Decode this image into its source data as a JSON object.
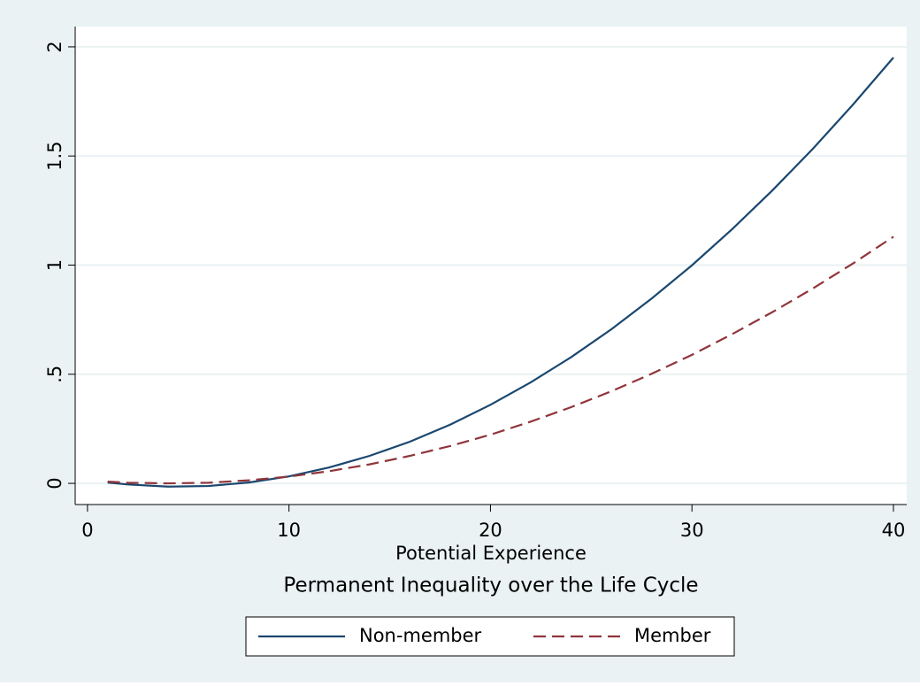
{
  "chart_data": {
    "type": "line",
    "title": "Permanent Inequality over the Life Cycle",
    "x_label": "Potential Experience",
    "x": [
      1,
      2,
      4,
      6,
      8,
      10,
      12,
      14,
      16,
      18,
      20,
      22,
      24,
      26,
      28,
      30,
      32,
      34,
      36,
      38,
      40
    ],
    "series": [
      {
        "name": "Non-member",
        "color": "#1a476f",
        "line_style": "solid",
        "values": [
          0.004,
          -0.005,
          -0.015,
          -0.012,
          0.004,
          0.032,
          0.073,
          0.126,
          0.191,
          0.269,
          0.36,
          0.463,
          0.578,
          0.706,
          0.847,
          0.999,
          1.165,
          1.343,
          1.533,
          1.736,
          1.951
        ]
      },
      {
        "name": "Member",
        "color": "#90353b",
        "line_style": "dashed",
        "values": [
          0.008,
          0.003,
          0,
          0.003,
          0.014,
          0.031,
          0.056,
          0.087,
          0.126,
          0.171,
          0.223,
          0.283,
          0.349,
          0.422,
          0.502,
          0.589,
          0.684,
          0.785,
          0.893,
          1.008,
          1.13
        ]
      }
    ],
    "xlim": [
      -0.61,
      40.66
    ],
    "xticks": [
      0,
      10,
      20,
      30,
      40
    ],
    "ylim": [
      -0.097,
      2.093
    ],
    "yticks": [
      0,
      {
        "value": 0.5,
        "label": ".5"
      },
      1,
      1.5,
      2
    ],
    "grid": true,
    "legend_position": "bottom"
  }
}
